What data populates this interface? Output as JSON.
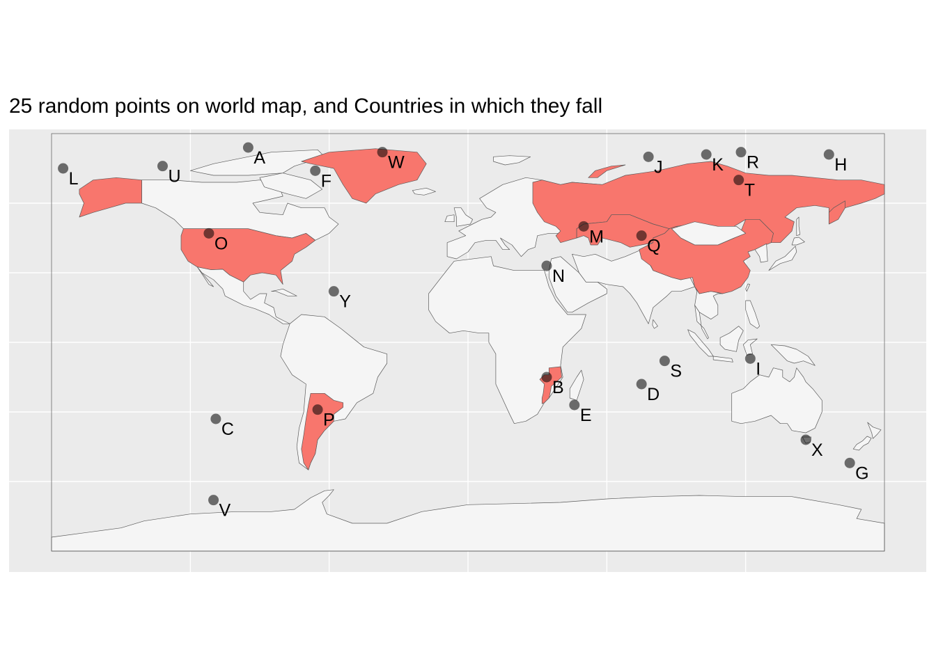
{
  "title": "25 random points on world map, and Countries in which they fall",
  "colors": {
    "panel": "#EBEBEB",
    "grid": "#FFFFFF",
    "land": "#F5F5F5",
    "land_border": "#595959",
    "highlight": "#F8766D",
    "point": "#000000"
  },
  "chart_data": {
    "type": "scatter",
    "projection": "equirectangular",
    "xlim": [
      -180,
      180
    ],
    "ylim": [
      -90,
      90
    ],
    "grid": true,
    "highlighted_countries": [
      "United States",
      "Greenland",
      "Russia",
      "China",
      "Kazakhstan",
      "Argentina",
      "Mozambique"
    ],
    "points": [
      {
        "label": "A",
        "lon": -95,
        "lat": 84
      },
      {
        "label": "B",
        "lon": 34,
        "lat": -15
      },
      {
        "label": "C",
        "lon": -109,
        "lat": -33
      },
      {
        "label": "D",
        "lon": 75,
        "lat": -18
      },
      {
        "label": "E",
        "lon": 46,
        "lat": -27
      },
      {
        "label": "F",
        "lon": -66,
        "lat": 74
      },
      {
        "label": "G",
        "lon": 165,
        "lat": -52
      },
      {
        "label": "H",
        "lon": 156,
        "lat": 81
      },
      {
        "label": "I",
        "lon": 122,
        "lat": -7
      },
      {
        "label": "J",
        "lon": 78,
        "lat": 80
      },
      {
        "label": "K",
        "lon": 103,
        "lat": 81
      },
      {
        "label": "L",
        "lon": -175,
        "lat": 75
      },
      {
        "label": "M",
        "lon": 50,
        "lat": 50
      },
      {
        "label": "N",
        "lon": 34,
        "lat": 33
      },
      {
        "label": "O",
        "lon": -112,
        "lat": 47
      },
      {
        "label": "P",
        "lon": -65,
        "lat": -29
      },
      {
        "label": "Q",
        "lon": 75,
        "lat": 46
      },
      {
        "label": "R",
        "lon": 118,
        "lat": 82
      },
      {
        "label": "S",
        "lon": 85,
        "lat": -8
      },
      {
        "label": "T",
        "lon": 117,
        "lat": 70
      },
      {
        "label": "U",
        "lon": -132,
        "lat": 76
      },
      {
        "label": "V",
        "lon": -110,
        "lat": -68
      },
      {
        "label": "W",
        "lon": -37,
        "lat": 82
      },
      {
        "label": "X",
        "lon": 146,
        "lat": -42
      },
      {
        "label": "Y",
        "lon": -58,
        "lat": 22
      }
    ]
  }
}
